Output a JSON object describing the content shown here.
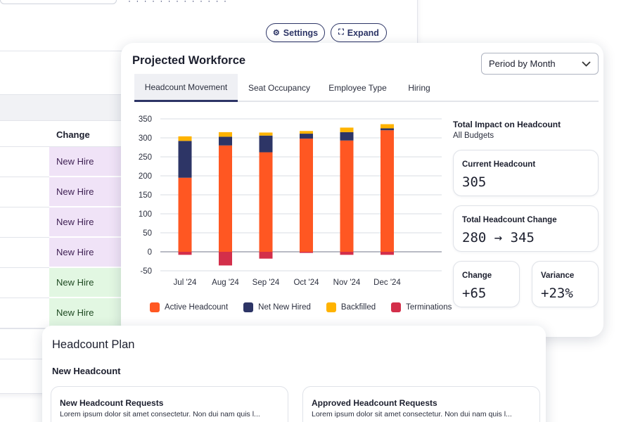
{
  "background": {
    "settings_label": "Settings",
    "expand_label": "Expand",
    "table": {
      "change_header": "Change",
      "rows": [
        {
          "label": "New Hire",
          "tone": "purple"
        },
        {
          "label": "New Hire",
          "tone": "purple"
        },
        {
          "label": "New Hire",
          "tone": "purple"
        },
        {
          "label": "New Hire",
          "tone": "purple"
        },
        {
          "label": "New Hire",
          "tone": "green"
        },
        {
          "label": "New Hire",
          "tone": "green"
        }
      ]
    }
  },
  "workforce": {
    "title": "Projected Workforce",
    "period_select": {
      "value": "Period by Month"
    },
    "tabs": [
      {
        "label": "Headcount Movement",
        "active": true
      },
      {
        "label": "Seat Occupancy",
        "active": false
      },
      {
        "label": "Employee Type",
        "active": false
      },
      {
        "label": "Hiring",
        "active": false
      }
    ],
    "impact": {
      "title": "Total Impact on Headcount",
      "subtitle": "All Budgets",
      "current_label": "Current Headcount",
      "current_value": "305",
      "change_label": "Total Headcount Change",
      "change_value": "280 → 345",
      "delta_label": "Change",
      "delta_value": "+65",
      "variance_label": "Variance",
      "variance_value": "+23%"
    }
  },
  "chart_data": {
    "type": "bar",
    "stacked": true,
    "categories": [
      "Jul '24",
      "Aug '24",
      "Sep '24",
      "Oct '24",
      "Nov '24",
      "Dec '24"
    ],
    "series": [
      {
        "name": "Active Headcount",
        "color": "#ff5722",
        "values": [
          195,
          280,
          262,
          298,
          293,
          320
        ]
      },
      {
        "name": "Net New Hired",
        "color": "#2d3566",
        "values": [
          97,
          23,
          44,
          13,
          22,
          5
        ]
      },
      {
        "name": "Backfilled",
        "color": "#ffb300",
        "values": [
          12,
          12,
          8,
          7,
          12,
          11
        ]
      },
      {
        "name": "Terminations",
        "color": "#d32f4a",
        "values": [
          -8,
          -36,
          -18,
          -3,
          -8,
          -8
        ]
      }
    ],
    "yticks": [
      350,
      300,
      250,
      200,
      150,
      100,
      50,
      0,
      -50
    ],
    "ylim": [
      -50,
      350
    ],
    "grid": true,
    "legend": "bottom"
  },
  "plan": {
    "title": "Headcount Plan",
    "subtitle": "New Headcount",
    "cards": [
      {
        "title": "New Headcount Requests",
        "text": "Lorem ipsum dolor sit amet consectetur. Non dui nam quis l..."
      },
      {
        "title": "Approved Headcount Requests",
        "text": "Lorem ipsum dolor sit amet consectetur. Non dui nam quis l..."
      }
    ]
  }
}
